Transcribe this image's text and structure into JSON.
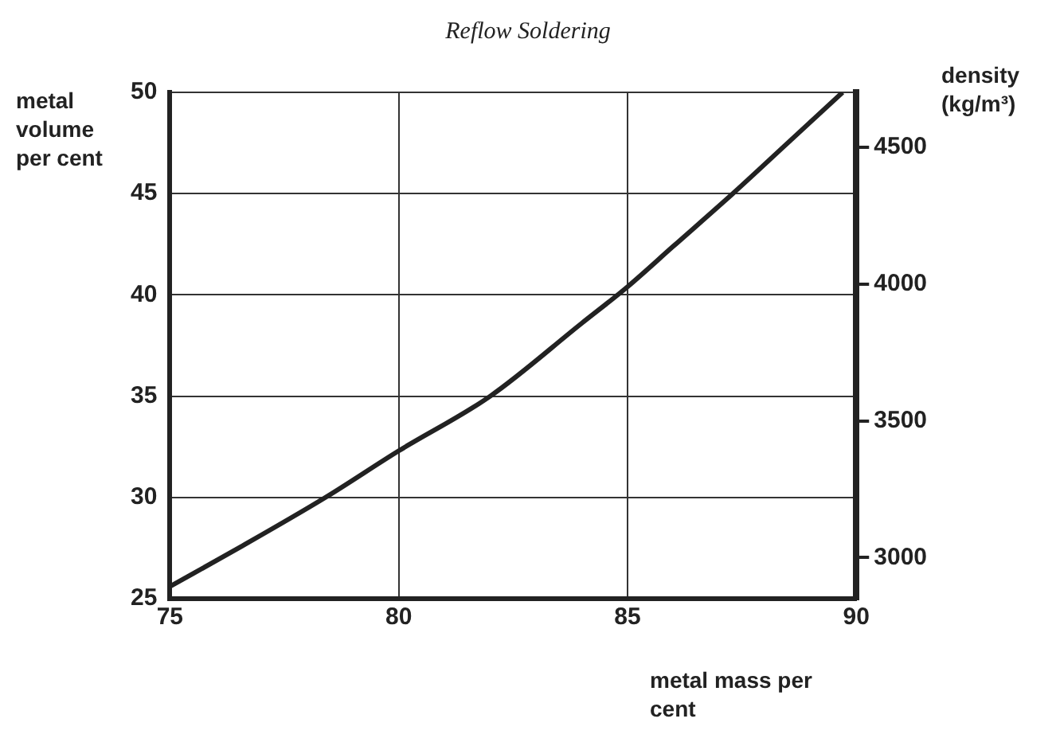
{
  "chart_data": {
    "type": "line",
    "title": "Reflow Soldering",
    "xlabel": "metal mass per cent",
    "ylabel": "metal volume per cent",
    "y2label": "density (kg/m³)",
    "series": [
      {
        "color": "#222222",
        "x": [
          75,
          76.5,
          78.4,
          80,
          82,
          84,
          85,
          86,
          87.3,
          88.5,
          89.7
        ],
        "values": [
          25.6,
          27.5,
          30,
          32.3,
          35.0,
          38.6,
          40.4,
          42.4,
          45,
          47.5,
          50
        ]
      }
    ],
    "xlim": [
      75,
      90
    ],
    "xticks": [
      75,
      80,
      85,
      90
    ],
    "ylim": [
      25,
      50
    ],
    "yticks": [
      25,
      30,
      35,
      40,
      45,
      50
    ],
    "y2lim": [
      2850,
      4700
    ],
    "y2ticks": [
      3000,
      3500,
      4000,
      4500
    ],
    "grid": true,
    "legend": false,
    "marker": "none",
    "line_style": "solid"
  }
}
